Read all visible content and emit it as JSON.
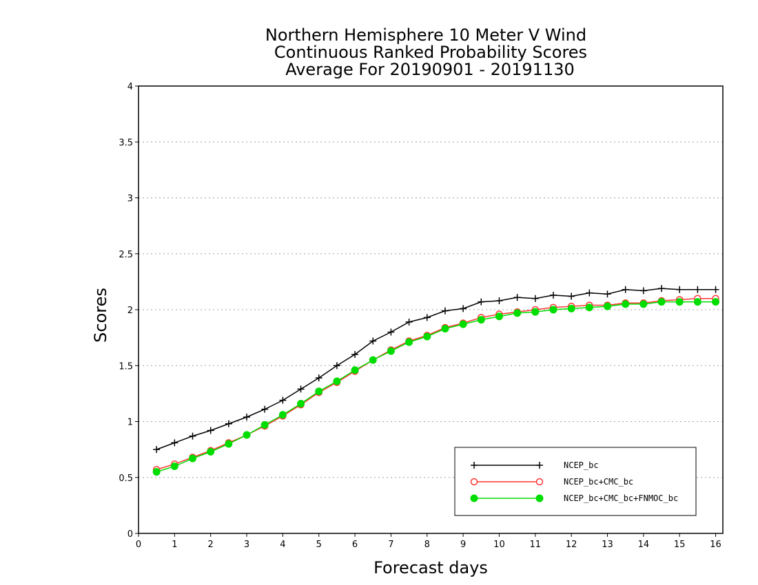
{
  "chart_data": {
    "type": "line",
    "title_lines": [
      "Northern Hemisphere 10 Meter V Wind",
      "Continuous Ranked Probability Scores",
      "Average For 20190901 - 20191130"
    ],
    "xlabel": "Forecast days",
    "ylabel": "Scores",
    "xlim": [
      0,
      16.2
    ],
    "ylim": [
      0,
      4
    ],
    "x_ticks": [
      0,
      1,
      2,
      3,
      4,
      5,
      6,
      7,
      8,
      9,
      10,
      11,
      12,
      13,
      14,
      15,
      16
    ],
    "y_ticks": [
      0,
      0.5,
      1,
      1.5,
      2,
      2.5,
      3,
      3.5,
      4
    ],
    "y_tick_labels": [
      "0",
      "0.5",
      "1",
      "1.5",
      "2",
      "2.5",
      "3",
      "3.5",
      "4"
    ],
    "grid": "horizontal dotted",
    "legend_position": "bottom-right",
    "x": [
      0.5,
      1,
      1.5,
      2,
      2.5,
      3,
      3.5,
      4,
      4.5,
      5,
      5.5,
      6,
      6.5,
      7,
      7.5,
      8,
      8.5,
      9,
      9.5,
      10,
      10.5,
      11,
      11.5,
      12,
      12.5,
      13,
      13.5,
      14,
      14.5,
      15,
      15.5,
      16
    ],
    "series": [
      {
        "name": "NCEP_bc",
        "color": "#000000",
        "marker": "plus",
        "values": [
          0.75,
          0.81,
          0.87,
          0.92,
          0.98,
          1.04,
          1.11,
          1.19,
          1.29,
          1.39,
          1.5,
          1.6,
          1.72,
          1.8,
          1.89,
          1.93,
          1.99,
          2.01,
          2.07,
          2.08,
          2.11,
          2.1,
          2.13,
          2.12,
          2.15,
          2.14,
          2.18,
          2.17,
          2.19,
          2.18,
          2.18,
          2.18
        ]
      },
      {
        "name": "NCEP_bc+CMC_bc",
        "color": "#ff3333",
        "marker": "open-circle",
        "values": [
          0.57,
          0.62,
          0.68,
          0.74,
          0.81,
          0.88,
          0.96,
          1.05,
          1.15,
          1.26,
          1.35,
          1.45,
          1.55,
          1.64,
          1.72,
          1.77,
          1.84,
          1.88,
          1.93,
          1.96,
          1.98,
          2.0,
          2.02,
          2.03,
          2.04,
          2.04,
          2.06,
          2.06,
          2.08,
          2.09,
          2.1,
          2.1
        ]
      },
      {
        "name": "NCEP_bc+CMC_bc+FNMOC_bc",
        "color": "#00dd00",
        "marker": "filled-circle",
        "values": [
          0.55,
          0.6,
          0.67,
          0.73,
          0.8,
          0.88,
          0.97,
          1.06,
          1.16,
          1.27,
          1.36,
          1.46,
          1.55,
          1.63,
          1.71,
          1.76,
          1.83,
          1.87,
          1.91,
          1.94,
          1.97,
          1.98,
          2.0,
          2.01,
          2.02,
          2.03,
          2.05,
          2.05,
          2.07,
          2.07,
          2.07,
          2.07
        ]
      }
    ]
  }
}
